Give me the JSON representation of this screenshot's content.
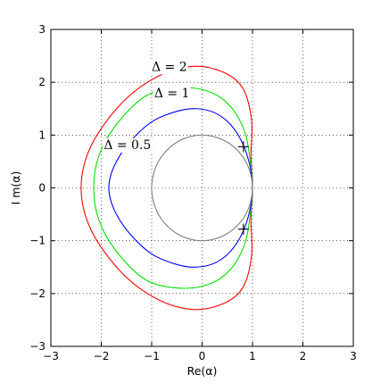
{
  "chart_data": {
    "type": "line",
    "title": "",
    "xlabel": "Re(α)",
    "ylabel": "I m(α)",
    "xlim": [
      -3,
      3
    ],
    "ylim": [
      -3,
      3
    ],
    "xticks": [
      "−3",
      "−2",
      "−1",
      "0",
      "1",
      "2",
      "3"
    ],
    "yticks": [
      "−3",
      "−2",
      "−1",
      "0",
      "1",
      "2",
      "3"
    ],
    "grid": true,
    "series": [
      {
        "name": "Δ = 2",
        "color": "#ff0000",
        "points": [
          [
            1.0,
            0.0
          ],
          [
            0.97,
            0.6
          ],
          [
            0.98,
            1.3
          ],
          [
            0.8,
            1.9
          ],
          [
            0.4,
            2.2
          ],
          [
            -0.2,
            2.3
          ],
          [
            -0.9,
            2.1
          ],
          [
            -1.6,
            1.6
          ],
          [
            -2.2,
            0.8
          ],
          [
            -2.4,
            0.0
          ],
          [
            -2.2,
            -0.8
          ],
          [
            -1.6,
            -1.6
          ],
          [
            -0.9,
            -2.1
          ],
          [
            -0.2,
            -2.3
          ],
          [
            0.4,
            -2.2
          ],
          [
            0.8,
            -1.9
          ],
          [
            0.98,
            -1.3
          ],
          [
            0.97,
            -0.6
          ],
          [
            1.0,
            0.0
          ]
        ]
      },
      {
        "name": "Δ = 1",
        "color": "#00e000",
        "points": [
          [
            1.0,
            0.0
          ],
          [
            0.95,
            0.55
          ],
          [
            0.85,
            1.05
          ],
          [
            0.6,
            1.5
          ],
          [
            0.2,
            1.8
          ],
          [
            -0.4,
            1.9
          ],
          [
            -1.1,
            1.75
          ],
          [
            -1.7,
            1.2
          ],
          [
            -2.05,
            0.6
          ],
          [
            -2.15,
            0.0
          ],
          [
            -2.05,
            -0.6
          ],
          [
            -1.7,
            -1.2
          ],
          [
            -1.1,
            -1.75
          ],
          [
            -0.4,
            -1.9
          ],
          [
            0.2,
            -1.8
          ],
          [
            0.6,
            -1.5
          ],
          [
            0.85,
            -1.05
          ],
          [
            0.95,
            -0.55
          ],
          [
            1.0,
            0.0
          ]
        ]
      },
      {
        "name": "Δ = 0.5",
        "color": "#0000ff",
        "points": [
          [
            1.0,
            0.0
          ],
          [
            0.9,
            0.6
          ],
          [
            0.65,
            1.1
          ],
          [
            0.3,
            1.4
          ],
          [
            -0.1,
            1.5
          ],
          [
            -0.5,
            1.45
          ],
          [
            -1.0,
            1.25
          ],
          [
            -1.45,
            0.85
          ],
          [
            -1.75,
            0.4
          ],
          [
            -1.85,
            0.0
          ],
          [
            -1.75,
            -0.4
          ],
          [
            -1.45,
            -0.85
          ],
          [
            -1.0,
            -1.25
          ],
          [
            -0.5,
            -1.45
          ],
          [
            -0.1,
            -1.5
          ],
          [
            0.3,
            -1.4
          ],
          [
            0.65,
            -1.1
          ],
          [
            0.9,
            -0.6
          ],
          [
            1.0,
            0.0
          ]
        ]
      },
      {
        "name": "",
        "color": "#808080",
        "points": [
          [
            1.0,
            0.0
          ],
          [
            0.866,
            0.5
          ],
          [
            0.5,
            0.866
          ],
          [
            0.0,
            1.0
          ],
          [
            -0.5,
            0.866
          ],
          [
            -0.866,
            0.5
          ],
          [
            -1.0,
            0.0
          ],
          [
            -0.866,
            -0.5
          ],
          [
            -0.5,
            -0.866
          ],
          [
            0.0,
            -1.0
          ],
          [
            0.5,
            -0.866
          ],
          [
            0.866,
            -0.5
          ],
          [
            1.0,
            0.0
          ]
        ]
      }
    ],
    "markers": [
      [
        0.82,
        0.78
      ],
      [
        0.82,
        -0.78
      ]
    ],
    "annotations": [
      {
        "text": "Δ = 2",
        "x": -1.0,
        "y": 2.3
      },
      {
        "text": "Δ = 1",
        "x": -0.95,
        "y": 1.8
      },
      {
        "text": "Δ = 0.5",
        "x": -1.95,
        "y": 0.82
      }
    ]
  }
}
